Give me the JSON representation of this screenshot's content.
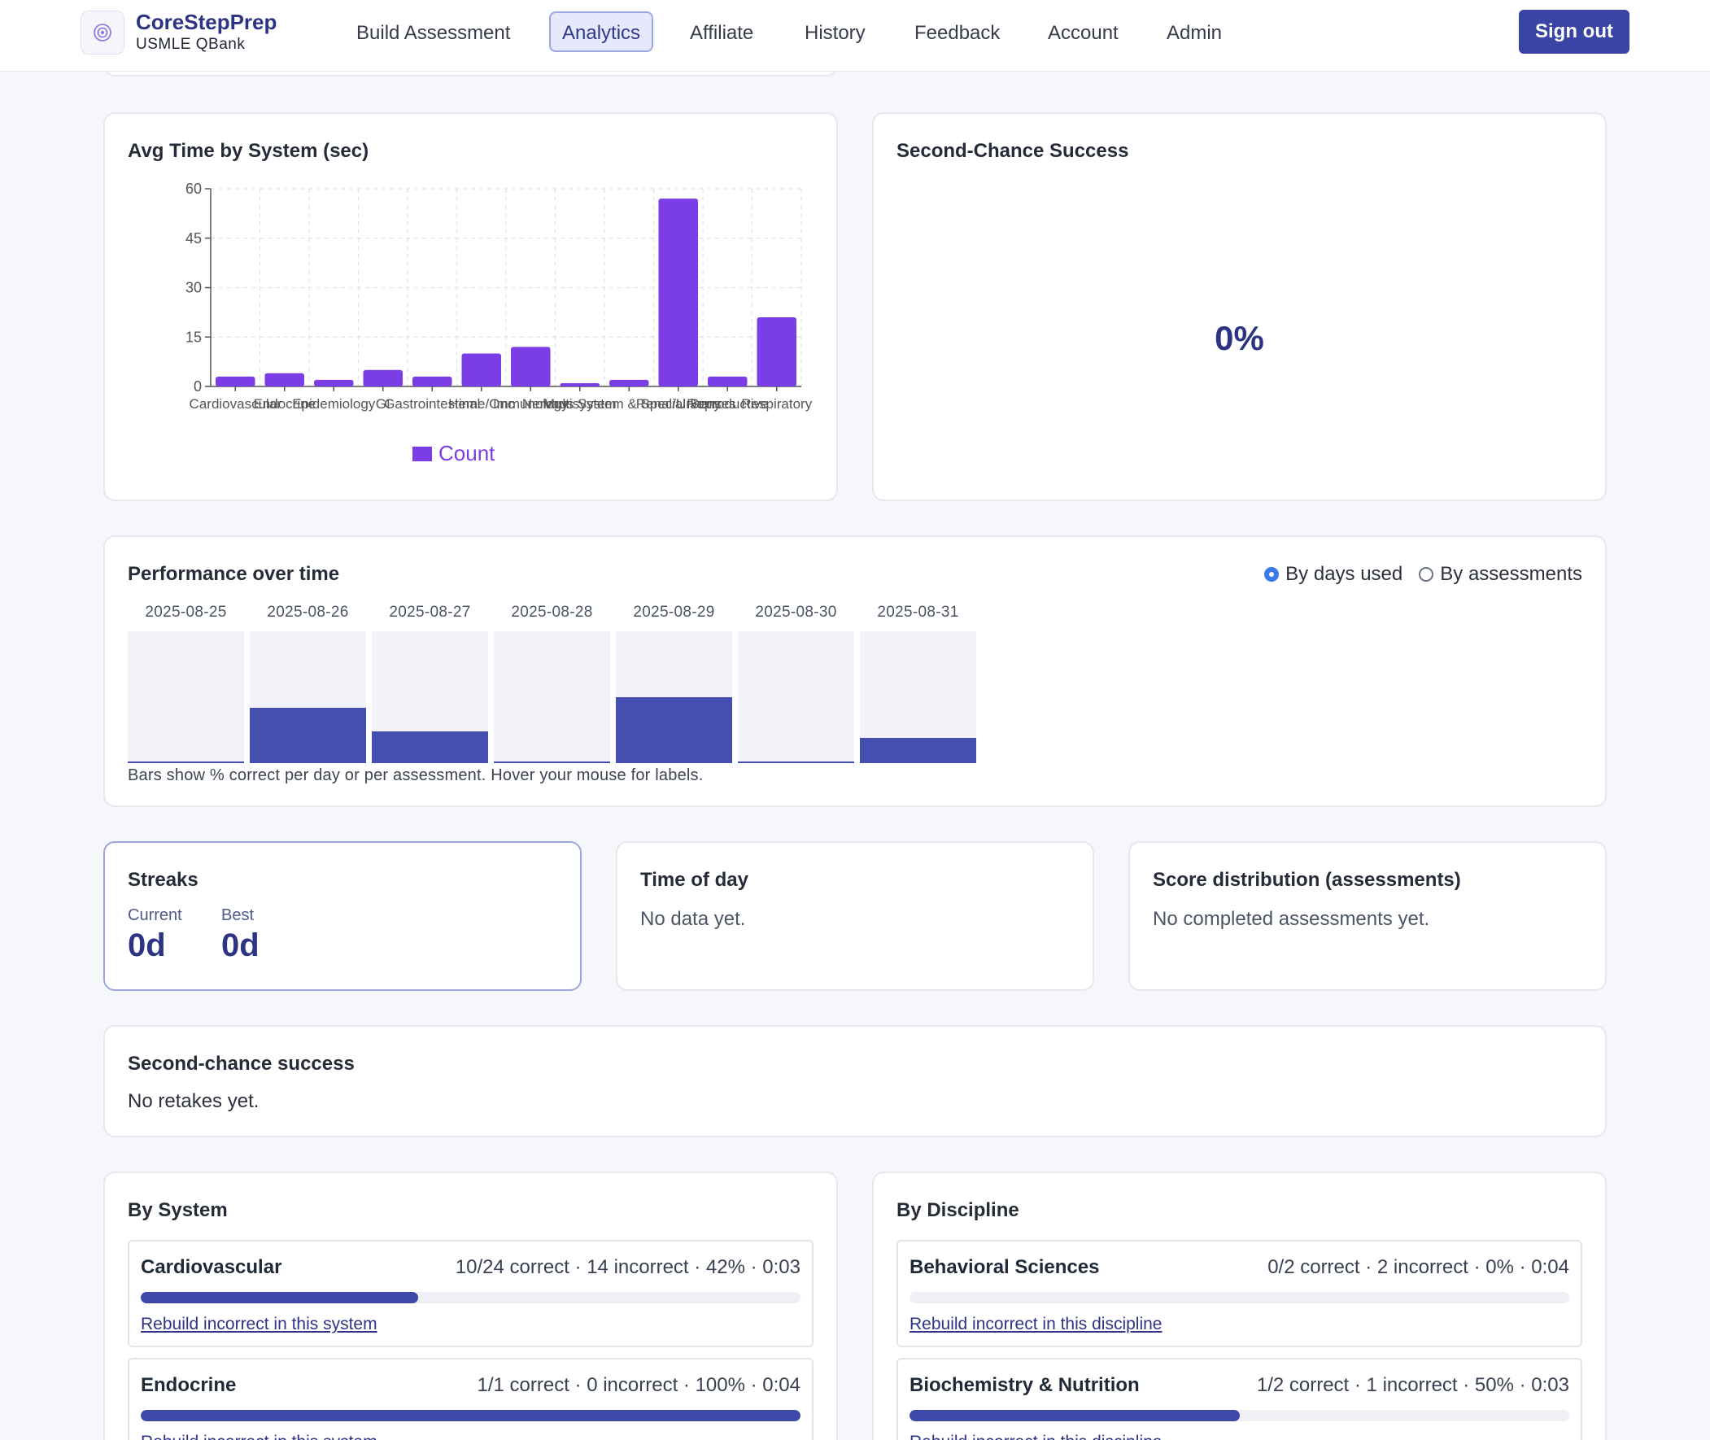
{
  "brand": {
    "name": "CoreStepPrep",
    "subtitle": "USMLE QBank"
  },
  "nav": {
    "items": [
      "Build Assessment",
      "Analytics",
      "Affiliate",
      "History",
      "Feedback",
      "Account",
      "Admin"
    ],
    "active": "Analytics",
    "sign_out": "Sign out"
  },
  "avg_time": {
    "title": "Avg Time by System (sec)",
    "legend": "Count"
  },
  "chart_data": {
    "type": "bar",
    "title": "Avg Time by System (sec)",
    "categories": [
      "Cardiovascular",
      "Endocrine",
      "Epidemiology",
      "GI",
      "Gastrointestinal",
      "Heme/Onc",
      "Immunology",
      "Multisystem",
      "Nervous System & Special Senses",
      "Renal/Urinary",
      "Reproductive",
      "Respiratory"
    ],
    "series": [
      {
        "name": "Count",
        "values": [
          3,
          4,
          2,
          5,
          3,
          10,
          12,
          1,
          2,
          57,
          3,
          21
        ]
      }
    ],
    "ylim": [
      0,
      60
    ],
    "yticks": [
      0,
      15,
      30,
      45,
      60
    ],
    "grid": true,
    "legend_position": "bottom",
    "color": "#7a3de6"
  },
  "second_chance_top": {
    "title": "Second-Chance Success",
    "value": "0%"
  },
  "performance": {
    "title": "Performance over time",
    "modes": [
      "By days used",
      "By assessments"
    ],
    "selected_mode": "By days used",
    "days": [
      {
        "date": "2025-08-25",
        "pct": 0
      },
      {
        "date": "2025-08-26",
        "pct": 42
      },
      {
        "date": "2025-08-27",
        "pct": 24
      },
      {
        "date": "2025-08-28",
        "pct": 0
      },
      {
        "date": "2025-08-29",
        "pct": 50
      },
      {
        "date": "2025-08-30",
        "pct": 0
      },
      {
        "date": "2025-08-31",
        "pct": 19
      }
    ],
    "caption": "Bars show % correct per day or per assessment. Hover your mouse for labels."
  },
  "streaks": {
    "title": "Streaks",
    "current_label": "Current",
    "current_value": "0d",
    "best_label": "Best",
    "best_value": "0d"
  },
  "time_of_day": {
    "title": "Time of day",
    "empty": "No data yet."
  },
  "score_distribution": {
    "title": "Score distribution (assessments)",
    "empty": "No completed assessments yet."
  },
  "second_chance": {
    "title": "Second-chance success",
    "empty": "No retakes yet."
  },
  "by_system": {
    "title": "By System",
    "link_label": "Rebuild incorrect in this system",
    "items": [
      {
        "name": "Cardiovascular",
        "stats": "10/24 correct · 14 incorrect · 42% · 0:03",
        "pct": 42
      },
      {
        "name": "Endocrine",
        "stats": "1/1 correct · 0 incorrect · 100% · 0:04",
        "pct": 100
      }
    ]
  },
  "by_discipline": {
    "title": "By Discipline",
    "link_label": "Rebuild incorrect in this discipline",
    "items": [
      {
        "name": "Behavioral Sciences",
        "stats": "0/2 correct · 2 incorrect · 0% · 0:04",
        "pct": 0
      },
      {
        "name": "Biochemistry & Nutrition",
        "stats": "1/2 correct · 1 incorrect · 50% · 0:03",
        "pct": 50
      }
    ]
  }
}
